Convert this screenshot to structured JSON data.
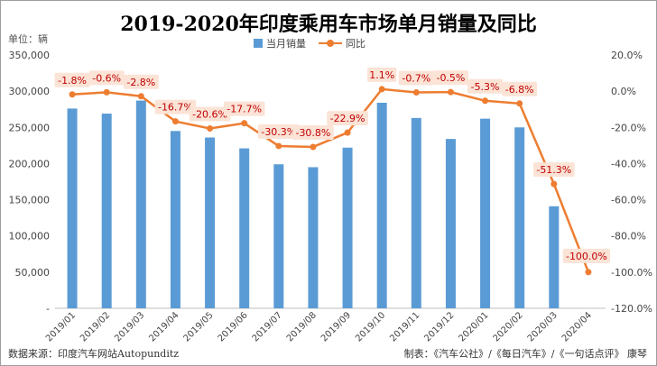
{
  "title": "2019-2020年印度乘用车市场单月销量及同比",
  "unit_label": "单位：辆",
  "legend": {
    "bars": "当月销量",
    "line": "同比"
  },
  "footer": {
    "source": "数据来源：印度汽车网站Autopunditz",
    "credit": "制表：《汽车公社》/《每日汽车》/《一句话点评》 康琴"
  },
  "colors": {
    "bar": "#5B9BD5",
    "line": "#ED7D31",
    "label_text": "#C00000",
    "label_bg": "#FBE3D6"
  },
  "chart_data": {
    "type": "bar",
    "categories": [
      "2019/01",
      "2019/02",
      "2019/03",
      "2019/04",
      "2019/05",
      "2019/06",
      "2019/07",
      "2019/08",
      "2019/09",
      "2019/10",
      "2019/11",
      "2019/12",
      "2020/01",
      "2020/02",
      "2020/03",
      "2020/04"
    ],
    "series": [
      {
        "name": "当月销量",
        "type": "bar",
        "axis": "left",
        "values": [
          276000,
          269000,
          287000,
          245000,
          236000,
          221000,
          199000,
          195000,
          222000,
          284000,
          263000,
          234000,
          262000,
          250000,
          141000,
          0
        ]
      },
      {
        "name": "同比",
        "type": "line",
        "axis": "right",
        "values": [
          -1.8,
          -0.6,
          -2.8,
          -16.7,
          -20.6,
          -17.7,
          -30.3,
          -30.8,
          -22.9,
          1.1,
          -0.7,
          -0.5,
          -5.3,
          -6.8,
          -51.3,
          -100.0
        ]
      }
    ],
    "data_labels": [
      "-1.8%",
      "-0.6%",
      "-2.8%",
      "-16.7%",
      "-20.6%",
      "-17.7%",
      "-30.3%",
      "-30.8%",
      "-22.9%",
      "1.1%",
      "-0.7%",
      "-0.5%",
      "-5.3%",
      "-6.8%",
      "-51.3%",
      "-100.0%"
    ],
    "y_left": {
      "ylim": [
        0,
        350000
      ],
      "ticks": [
        "-",
        "50,000",
        "100,000",
        "150,000",
        "200,000",
        "250,000",
        "300,000",
        "350,000"
      ]
    },
    "y_right": {
      "ylim": [
        -120,
        20
      ],
      "ticks": [
        "-120.0%",
        "-100.0%",
        "-80.0%",
        "-60.0%",
        "-40.0%",
        "-20.0%",
        "0.0%",
        "20.0%"
      ]
    },
    "grid": false,
    "legend_position": "top-center"
  }
}
